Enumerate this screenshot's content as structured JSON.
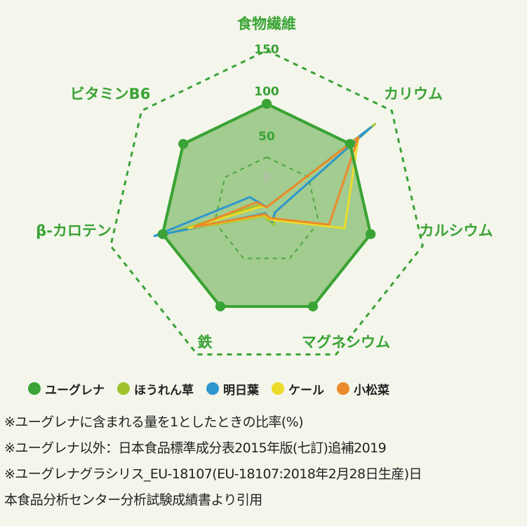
{
  "chart_data": {
    "type": "radar",
    "categories": [
      "食物繊維",
      "カリウム",
      "カルシウム",
      "マグネシウム",
      "鉄",
      "β-カロテン",
      "ビタミンB6"
    ],
    "ticks": [
      "0",
      "50",
      "100",
      "150"
    ],
    "rmax": 150,
    "series": [
      {
        "name": "ユーグレナ",
        "color": "#3aa335",
        "values": [
          100,
          100,
          100,
          100,
          100,
          100,
          100
        ]
      },
      {
        "name": "ほうれん草",
        "color": "#9fc22d",
        "values": [
          3,
          130,
          8,
          15,
          6,
          88,
          8
        ]
      },
      {
        "name": "明日葉",
        "color": "#2f97cf",
        "values": [
          3,
          125,
          8,
          12,
          3,
          108,
          20
        ]
      },
      {
        "name": "ケール",
        "color": "#ecdc2a",
        "values": [
          3,
          110,
          75,
          10,
          5,
          75,
          6
        ]
      },
      {
        "name": "小松菜",
        "color": "#ea8a2a",
        "values": [
          3,
          110,
          60,
          8,
          4,
          70,
          12
        ]
      }
    ]
  },
  "legend": [
    {
      "label": "ユーグレナ",
      "color": "#3aa335"
    },
    {
      "label": "ほうれん草",
      "color": "#9fc22d"
    },
    {
      "label": "明日葉",
      "color": "#2f97cf"
    },
    {
      "label": "ケール",
      "color": "#ecdc2a"
    },
    {
      "label": "小松菜",
      "color": "#ea8a2a"
    }
  ],
  "notes": [
    "※ユーグレナに含まれる量を1としたときの比率(%)",
    "※ユーグレナ以外：日本食品標準成分表2015年版(七訂)追補2019",
    "※ユーグレナグラシリス_EU-18107(EU-18107:2018年2月28日生産)日",
    "本食品分析センター分析試験成績書より引用"
  ]
}
